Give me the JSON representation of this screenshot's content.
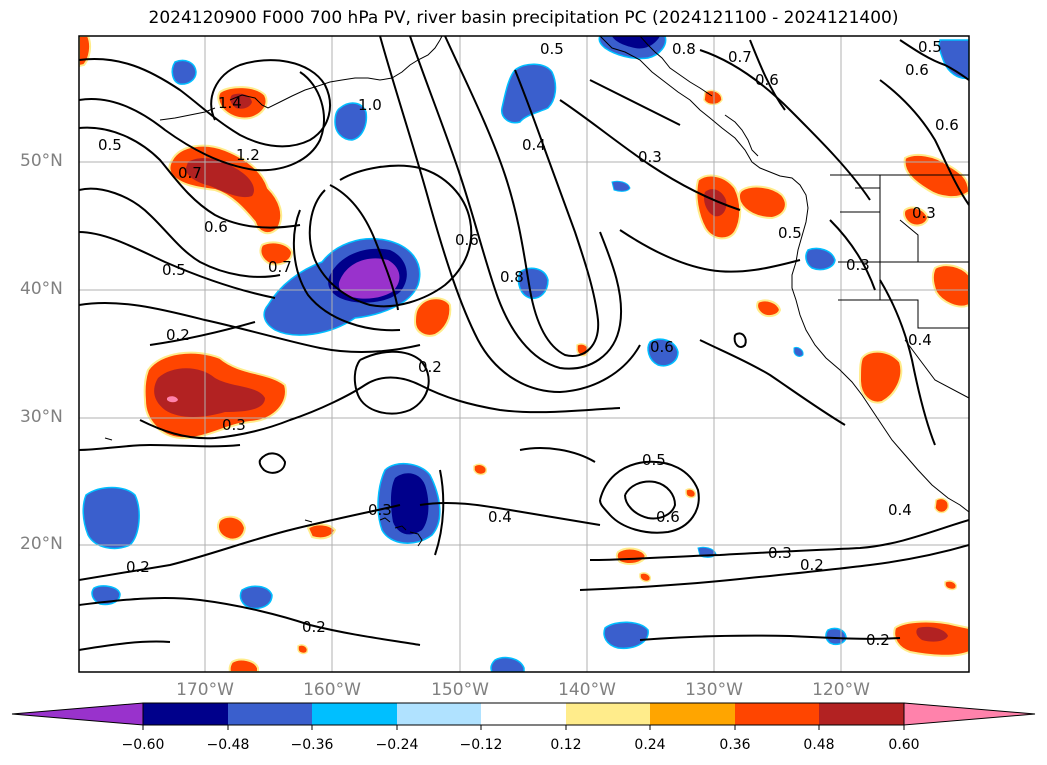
{
  "title": "2024120900 F000 700 hPa PV, river basin precipitation PC (2024121100 - 2024121400)",
  "lat_labels": [
    "50°N",
    "40°N",
    "30°N",
    "20°N"
  ],
  "lon_labels": [
    "170°W",
    "160°W",
    "150°W",
    "140°W",
    "130°W",
    "120°W"
  ],
  "colorbar": {
    "tick_labels": [
      "−0.60",
      "−0.48",
      "−0.36",
      "−0.24",
      "−0.12",
      "0.12",
      "0.24",
      "0.36",
      "0.48",
      "0.60"
    ],
    "colors": [
      "#9932cc",
      "#00008b",
      "#3a5fcd",
      "#00bfff",
      "#b0e2ff",
      "#ffffff",
      "#ffec8b",
      "#ffa500",
      "#ff4500",
      "#b22222",
      "#ff82ab"
    ]
  },
  "contour_labels": [
    "0.5",
    "0.8",
    "0.7",
    "0.5",
    "0.6",
    "1.4",
    "1.0",
    "0.5",
    "0.4",
    "0.3",
    "0.6",
    "0.6",
    "1.2",
    "0.7",
    "0.6",
    "0.7",
    "0.5",
    "0.6",
    "0.8",
    "0.3",
    "0.5",
    "0.3",
    "0.2",
    "0.2",
    "0.6",
    "0.3",
    "0.4",
    "0.5",
    "0.3",
    "0.4",
    "0.6",
    "0.4",
    "0.2",
    "0.3",
    "0.2",
    "0.2",
    "0.2"
  ],
  "colors": {
    "contour": "#000000",
    "grid": "#b0b0b0",
    "coast": "#000000"
  }
}
